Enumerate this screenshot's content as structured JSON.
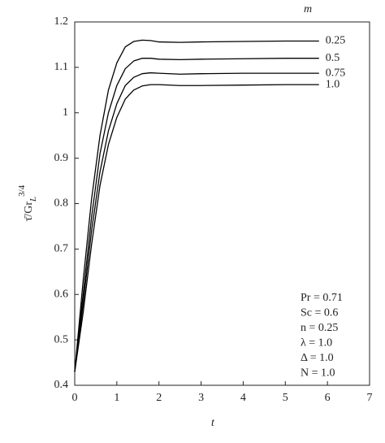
{
  "chart_data": {
    "type": "line",
    "x_label": "t",
    "y_label": {
      "base": "τ̄/Gr",
      "sub": "L",
      "sup": "3/4"
    },
    "legend_title": "m",
    "x": [
      0,
      0.2,
      0.4,
      0.6,
      0.8,
      1.0,
      1.2,
      1.4,
      1.6,
      1.8,
      2.0,
      2.5,
      3,
      4,
      5,
      5.8
    ],
    "series": [
      {
        "name": "0.25",
        "color": "#000000",
        "values": [
          0.43,
          0.63,
          0.81,
          0.95,
          1.05,
          1.11,
          1.145,
          1.157,
          1.16,
          1.159,
          1.156,
          1.155,
          1.156,
          1.157,
          1.158,
          1.158
        ]
      },
      {
        "name": "0.5",
        "color": "#000000",
        "values": [
          0.43,
          0.6,
          0.77,
          0.91,
          1.0,
          1.06,
          1.097,
          1.114,
          1.12,
          1.12,
          1.118,
          1.117,
          1.118,
          1.119,
          1.12,
          1.12
        ]
      },
      {
        "name": "0.75",
        "color": "#000000",
        "values": [
          0.43,
          0.58,
          0.74,
          0.87,
          0.96,
          1.02,
          1.06,
          1.078,
          1.086,
          1.088,
          1.087,
          1.085,
          1.086,
          1.087,
          1.087,
          1.087
        ]
      },
      {
        "name": "1.0",
        "color": "#000000",
        "values": [
          0.43,
          0.56,
          0.71,
          0.84,
          0.93,
          0.99,
          1.03,
          1.05,
          1.059,
          1.062,
          1.062,
          1.06,
          1.06,
          1.061,
          1.062,
          1.062
        ]
      }
    ],
    "annotations": [
      "Pr = 0.71",
      "Sc = 0.6",
      "n = 0.25",
      "λ = 1.0",
      "Δ = 1.0",
      "N = 1.0"
    ],
    "xlim": [
      0,
      7
    ],
    "xticks": [
      0,
      1,
      2,
      3,
      4,
      5,
      6,
      7
    ],
    "ylim": [
      0.4,
      1.2
    ],
    "yticks": [
      0.4,
      0.5,
      0.6,
      0.7,
      0.8,
      0.9,
      1,
      1.1,
      1.2
    ],
    "grid": false
  }
}
